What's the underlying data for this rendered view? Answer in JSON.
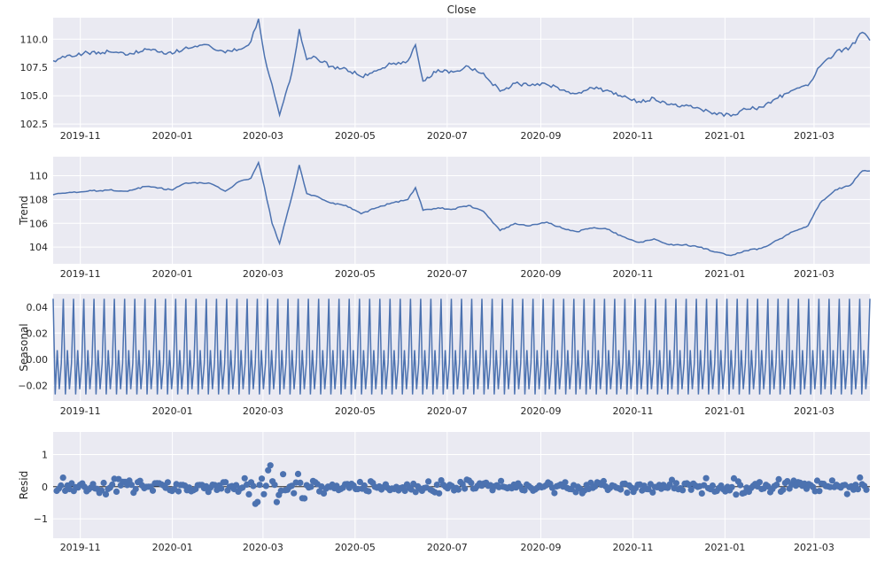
{
  "figure": {
    "title": "Close",
    "x_ticks": [
      "2019-11",
      "2020-01",
      "2020-03",
      "2020-05",
      "2020-07",
      "2020-09",
      "2020-11",
      "2021-01",
      "2021-03"
    ],
    "x_range": [
      "2019-10-14",
      "2021-04-07"
    ],
    "background": "#eaeaf2",
    "line_color": "#4c72b0",
    "point_color": "#4c72b0"
  },
  "chart_data": [
    {
      "type": "line",
      "ylabel": "",
      "title": "Close",
      "ylim": [
        102.2,
        111.9
      ],
      "y_ticks": [
        "102.5",
        "105.0",
        "107.5",
        "110.0"
      ],
      "x": [
        "2019-10-14",
        "2019-10-25",
        "2019-11-06",
        "2019-11-20",
        "2019-12-01",
        "2019-12-15",
        "2020-01-01",
        "2020-01-10",
        "2020-01-25",
        "2020-02-05",
        "2020-02-14",
        "2020-02-22",
        "2020-02-27",
        "2020-03-02",
        "2020-03-07",
        "2020-03-12",
        "2020-03-16",
        "2020-03-20",
        "2020-03-25",
        "2020-03-30",
        "2020-04-05",
        "2020-04-15",
        "2020-04-25",
        "2020-05-05",
        "2020-05-15",
        "2020-05-25",
        "2020-06-05",
        "2020-06-10",
        "2020-06-15",
        "2020-06-25",
        "2020-07-05",
        "2020-07-15",
        "2020-07-25",
        "2020-08-05",
        "2020-08-15",
        "2020-08-25",
        "2020-09-05",
        "2020-09-15",
        "2020-09-25",
        "2020-10-05",
        "2020-10-15",
        "2020-10-25",
        "2020-11-05",
        "2020-11-15",
        "2020-11-25",
        "2020-12-05",
        "2020-12-15",
        "2020-12-25",
        "2021-01-05",
        "2021-01-15",
        "2021-01-25",
        "2021-02-05",
        "2021-02-15",
        "2021-02-25",
        "2021-03-05",
        "2021-03-15",
        "2021-03-25",
        "2021-04-02",
        "2021-04-07"
      ],
      "values": [
        108.1,
        108.6,
        108.8,
        108.9,
        108.6,
        109.1,
        108.7,
        109.3,
        109.5,
        108.8,
        109.1,
        109.8,
        111.8,
        108.5,
        106.0,
        103.3,
        105.2,
        107.0,
        110.9,
        108.2,
        108.4,
        107.6,
        107.4,
        106.7,
        107.2,
        107.8,
        108.1,
        109.5,
        106.3,
        107.3,
        107.1,
        107.6,
        107.0,
        105.4,
        106.1,
        105.9,
        106.0,
        105.5,
        105.2,
        105.7,
        105.5,
        104.9,
        104.5,
        104.8,
        104.2,
        104.1,
        103.9,
        103.5,
        103.2,
        103.8,
        104.0,
        104.8,
        105.5,
        105.9,
        107.6,
        108.8,
        109.3,
        110.6,
        109.9
      ]
    },
    {
      "type": "line",
      "ylabel": "Trend",
      "ylim": [
        102.6,
        111.6
      ],
      "y_ticks": [
        "104",
        "106",
        "108",
        "110"
      ],
      "x": [
        "2019-10-14",
        "2019-10-25",
        "2019-11-06",
        "2019-11-20",
        "2019-12-01",
        "2019-12-15",
        "2020-01-01",
        "2020-01-10",
        "2020-01-25",
        "2020-02-05",
        "2020-02-14",
        "2020-02-22",
        "2020-02-27",
        "2020-03-02",
        "2020-03-07",
        "2020-03-12",
        "2020-03-16",
        "2020-03-20",
        "2020-03-25",
        "2020-03-30",
        "2020-04-05",
        "2020-04-15",
        "2020-04-25",
        "2020-05-05",
        "2020-05-15",
        "2020-05-25",
        "2020-06-05",
        "2020-06-10",
        "2020-06-15",
        "2020-06-25",
        "2020-07-05",
        "2020-07-15",
        "2020-07-25",
        "2020-08-05",
        "2020-08-15",
        "2020-08-25",
        "2020-09-05",
        "2020-09-15",
        "2020-09-25",
        "2020-10-05",
        "2020-10-15",
        "2020-10-25",
        "2020-11-05",
        "2020-11-15",
        "2020-11-25",
        "2020-12-05",
        "2020-12-15",
        "2020-12-25",
        "2021-01-05",
        "2021-01-15",
        "2021-01-25",
        "2021-02-05",
        "2021-02-15",
        "2021-02-25",
        "2021-03-05",
        "2021-03-15",
        "2021-03-25",
        "2021-04-02",
        "2021-04-07"
      ],
      "values": [
        108.4,
        108.6,
        108.7,
        108.8,
        108.7,
        109.1,
        108.8,
        109.4,
        109.4,
        108.7,
        109.5,
        109.8,
        111.1,
        109.0,
        106.0,
        104.3,
        106.3,
        108.2,
        110.9,
        108.5,
        108.3,
        107.7,
        107.5,
        106.8,
        107.3,
        107.7,
        108.0,
        109.0,
        107.1,
        107.3,
        107.2,
        107.5,
        107.0,
        105.4,
        106.0,
        105.8,
        106.1,
        105.6,
        105.3,
        105.6,
        105.5,
        104.9,
        104.4,
        104.7,
        104.2,
        104.2,
        104.0,
        103.6,
        103.3,
        103.7,
        103.9,
        104.6,
        105.3,
        105.8,
        107.7,
        108.8,
        109.2,
        110.4,
        110.4
      ]
    },
    {
      "type": "line",
      "ylabel": "Seasonal",
      "ylim": [
        -0.032,
        0.05
      ],
      "y_ticks": [
        "−0.02",
        "0.00",
        "0.02",
        "0.04"
      ],
      "period_pattern": [
        0.0463,
        -0.027,
        0.007,
        -0.023,
        -0.0033
      ],
      "cycles": 80
    },
    {
      "type": "scatter",
      "ylabel": "Resid",
      "ylim": [
        -1.6,
        1.7
      ],
      "y_ticks": [
        "−1",
        "0",
        "1"
      ],
      "n_points": 380,
      "baseline": 0
    }
  ]
}
